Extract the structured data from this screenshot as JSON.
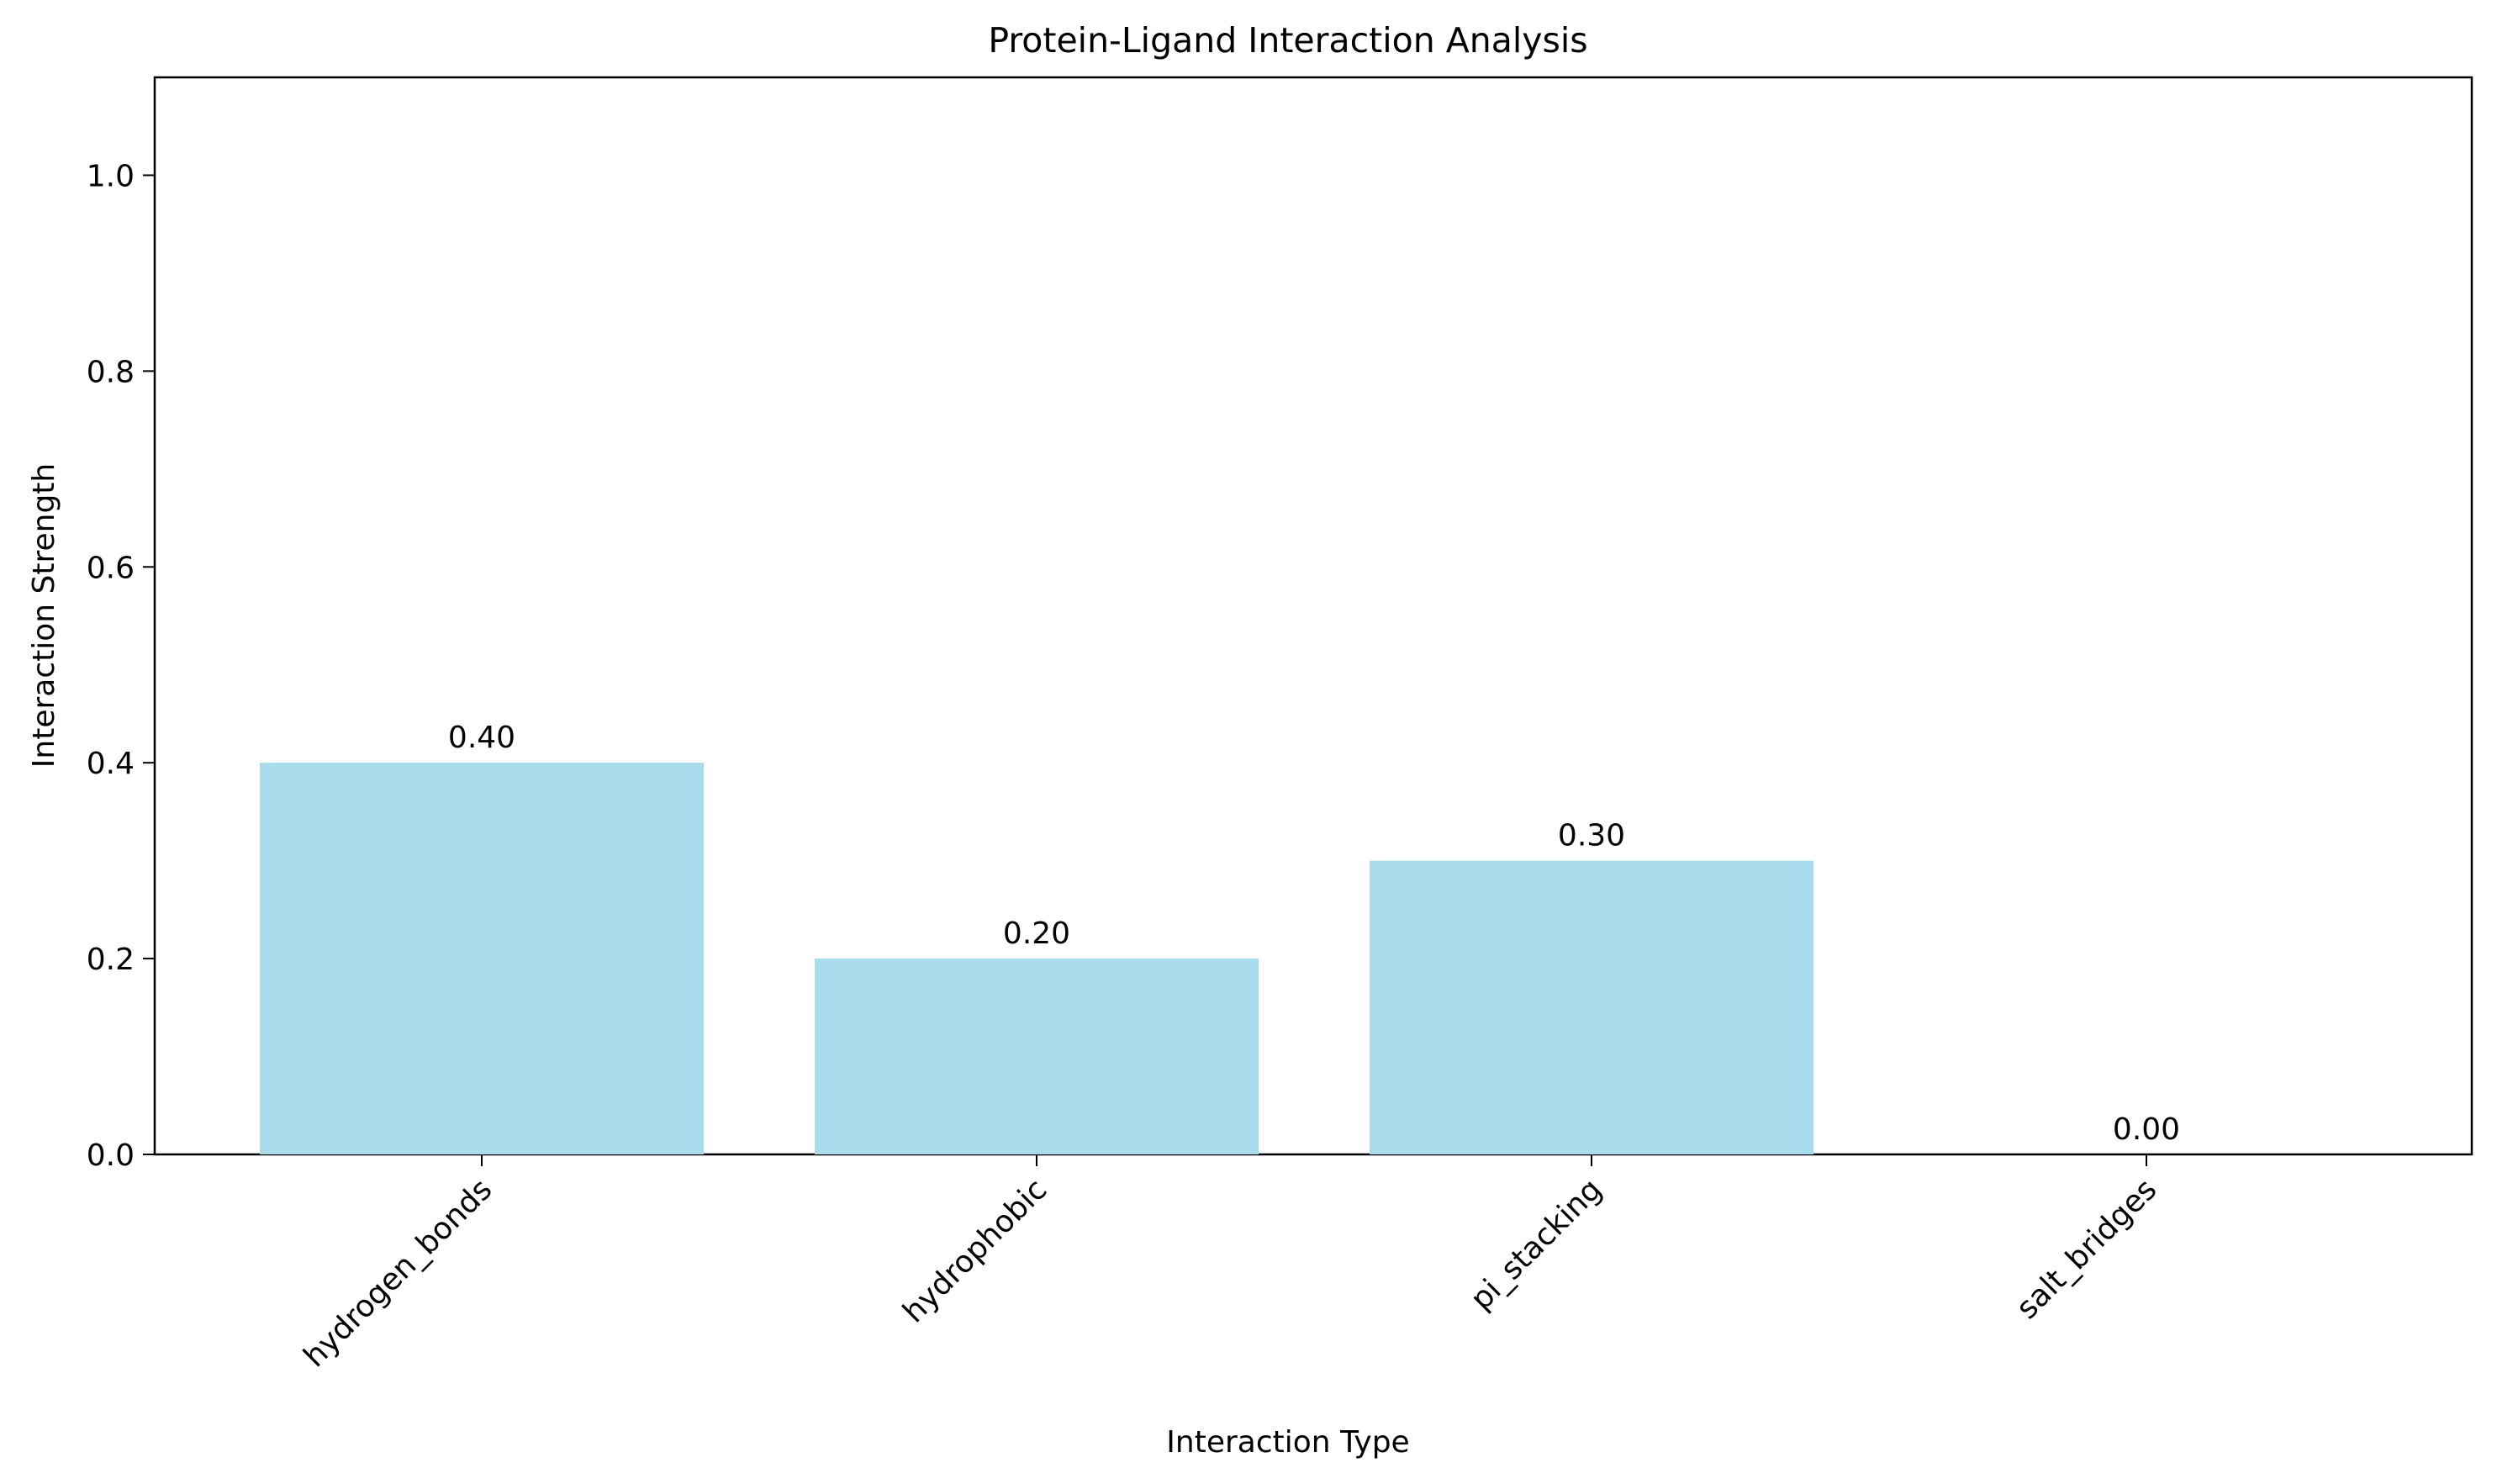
{
  "chart_data": {
    "type": "bar",
    "title": "Protein-Ligand Interaction Analysis",
    "xlabel": "Interaction Type",
    "ylabel": "Interaction Strength",
    "categories": [
      "hydrogen_bonds",
      "hydrophobic",
      "pi_stacking",
      "salt_bridges"
    ],
    "values": [
      0.4,
      0.2,
      0.3,
      0.0
    ],
    "value_labels": [
      "0.40",
      "0.20",
      "0.30",
      "0.00"
    ],
    "ylim": [
      0,
      1.1
    ],
    "yticks": [
      0.0,
      0.2,
      0.4,
      0.6,
      0.8,
      1.0
    ],
    "ytick_labels": [
      "0.0",
      "0.2",
      "0.4",
      "0.6",
      "0.8",
      "1.0"
    ],
    "bar_color": "#a8dbec",
    "grid": false,
    "legend": "none",
    "xtick_rotation_deg": 45
  }
}
